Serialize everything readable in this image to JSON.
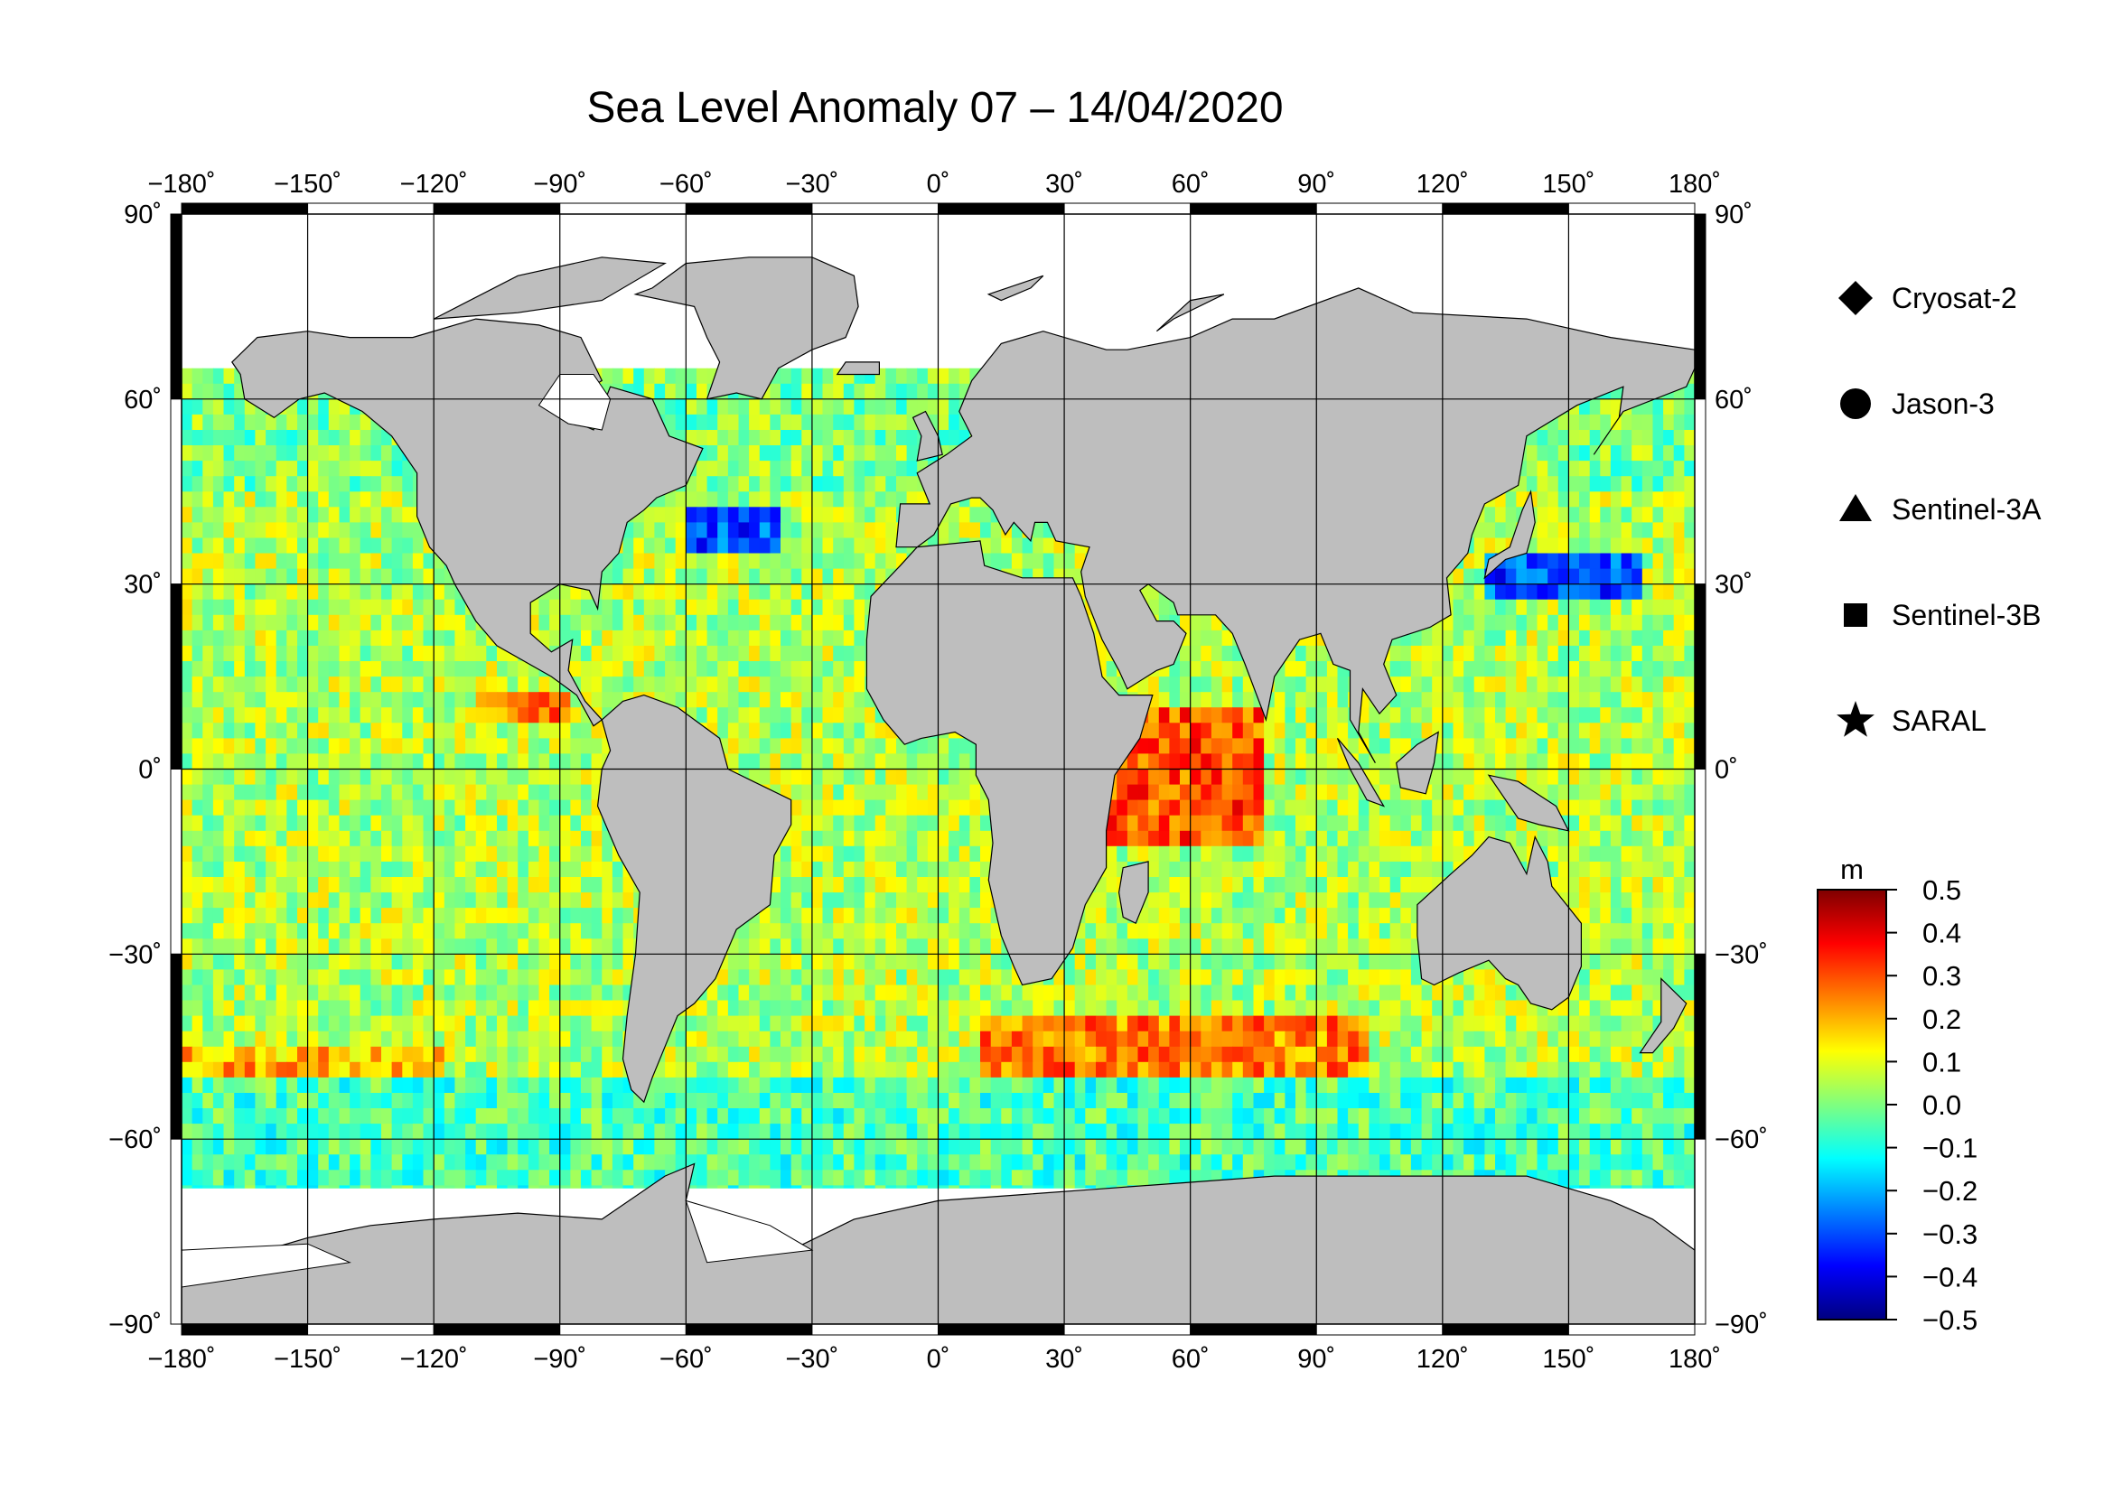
{
  "title": "Sea Level Anomaly 07 – 14/04/2020",
  "map": {
    "projection": "equirectangular",
    "lon_range": [
      -180,
      180
    ],
    "lat_range": [
      -90,
      90
    ],
    "lon_ticks": [
      "−180˚",
      "−150˚",
      "−120˚",
      "−90˚",
      "−60˚",
      "−30˚",
      "0˚",
      "30˚",
      "60˚",
      "90˚",
      "120˚",
      "150˚",
      "180˚"
    ],
    "lat_ticks": [
      "90˚",
      "60˚",
      "30˚",
      "0˚",
      "−30˚",
      "−60˚",
      "−90˚"
    ],
    "land_color": "#bebebe",
    "missing_color": "#ffffff",
    "grid": true
  },
  "legend": {
    "items": [
      {
        "symbol": "diamond",
        "label": "Cryosat-2"
      },
      {
        "symbol": "circle",
        "label": "Jason-3"
      },
      {
        "symbol": "triangle",
        "label": "Sentinel-3A"
      },
      {
        "symbol": "square",
        "label": "Sentinel-3B"
      },
      {
        "symbol": "star",
        "label": "SARAL"
      }
    ]
  },
  "colorbar": {
    "unit": "m",
    "min": -0.5,
    "max": 0.5,
    "labels": [
      "0.5",
      "0.4",
      "0.3",
      "0.2",
      "0.1",
      "0.0",
      "−0.1",
      "−0.2",
      "−0.3",
      "−0.4",
      "−0.5"
    ],
    "colors": [
      "#00007f",
      "#0000ff",
      "#007fff",
      "#00ffff",
      "#7fff7f",
      "#ffff00",
      "#ff7f00",
      "#ff0000",
      "#7f0000"
    ]
  },
  "chart_data": {
    "type": "heatmap",
    "title": "Sea Level Anomaly 07 – 14/04/2020",
    "xlabel": "",
    "ylabel": "",
    "xlim": [
      -180,
      180
    ],
    "ylim": [
      -90,
      90
    ],
    "unit": "m",
    "value_range": [
      -0.5,
      0.5
    ],
    "regions": [
      {
        "label": "",
        "lon": [
          -180,
          180
        ],
        "lat": [
          -65,
          65
        ],
        "value": 0.05
      },
      {
        "label": "",
        "lon": [
          40,
          75
        ],
        "lat": [
          -12,
          12
        ],
        "value": 0.3
      },
      {
        "label": "",
        "lon": [
          -110,
          -90
        ],
        "lat": [
          8,
          14
        ],
        "value": 0.25
      },
      {
        "label": "",
        "lon": [
          -180,
          -120
        ],
        "lat": [
          -50,
          -44
        ],
        "value": 0.2
      },
      {
        "label": "",
        "lon": [
          130,
          165
        ],
        "lat": [
          30,
          36
        ],
        "value": -0.3
      },
      {
        "label": "",
        "lon": [
          -60,
          -40
        ],
        "lat": [
          36,
          44
        ],
        "value": -0.3
      },
      {
        "label": "",
        "lon": [
          10,
          100
        ],
        "lat": [
          -50,
          -38
        ],
        "value": 0.25
      },
      {
        "label": "",
        "lon": [
          -180,
          180
        ],
        "lat": [
          -68,
          -50
        ],
        "value": -0.05
      }
    ]
  }
}
